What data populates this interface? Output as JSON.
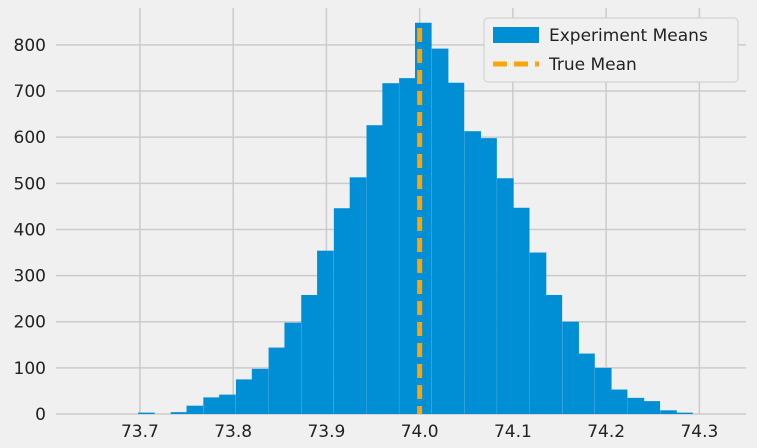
{
  "chart_data": {
    "type": "bar",
    "subtype": "histogram",
    "title": "",
    "xlabel": "",
    "ylabel": "",
    "xlim": [
      73.61,
      74.35
    ],
    "ylim": [
      0,
      880
    ],
    "xticks": [
      73.7,
      73.8,
      73.9,
      74.0,
      74.1,
      74.2,
      74.3
    ],
    "xtick_labels": [
      "73.7",
      "73.8",
      "73.9",
      "74.0",
      "74.1",
      "74.2",
      "74.3"
    ],
    "yticks": [
      0,
      100,
      200,
      300,
      400,
      500,
      600,
      700,
      800
    ],
    "ytick_labels": [
      "0",
      "100",
      "200",
      "300",
      "400",
      "500",
      "600",
      "700",
      "800"
    ],
    "grid": true,
    "legend_position": "top-right",
    "bin_width": 0.0175,
    "bins": [
      {
        "x0": 73.698,
        "count": 3
      },
      {
        "x0": 73.733,
        "count": 4
      },
      {
        "x0": 73.75,
        "count": 18
      },
      {
        "x0": 73.768,
        "count": 36
      },
      {
        "x0": 73.785,
        "count": 42
      },
      {
        "x0": 73.803,
        "count": 75
      },
      {
        "x0": 73.82,
        "count": 98
      },
      {
        "x0": 73.838,
        "count": 144
      },
      {
        "x0": 73.855,
        "count": 198
      },
      {
        "x0": 73.873,
        "count": 258
      },
      {
        "x0": 73.89,
        "count": 354
      },
      {
        "x0": 73.908,
        "count": 446
      },
      {
        "x0": 73.925,
        "count": 513
      },
      {
        "x0": 73.943,
        "count": 626
      },
      {
        "x0": 73.96,
        "count": 717
      },
      {
        "x0": 73.978,
        "count": 728
      },
      {
        "x0": 73.995,
        "count": 848
      },
      {
        "x0": 74.013,
        "count": 792
      },
      {
        "x0": 74.03,
        "count": 718
      },
      {
        "x0": 74.048,
        "count": 613
      },
      {
        "x0": 74.065,
        "count": 598
      },
      {
        "x0": 74.083,
        "count": 511
      },
      {
        "x0": 74.1,
        "count": 447
      },
      {
        "x0": 74.118,
        "count": 350
      },
      {
        "x0": 74.135,
        "count": 258
      },
      {
        "x0": 74.153,
        "count": 200
      },
      {
        "x0": 74.17,
        "count": 131
      },
      {
        "x0": 74.188,
        "count": 100
      },
      {
        "x0": 74.205,
        "count": 53
      },
      {
        "x0": 74.223,
        "count": 35
      },
      {
        "x0": 74.24,
        "count": 28
      },
      {
        "x0": 74.258,
        "count": 8
      },
      {
        "x0": 74.275,
        "count": 3
      }
    ],
    "series": [
      {
        "name": "Experiment Means",
        "kind": "histogram",
        "color": "#008fd5"
      },
      {
        "name": "True Mean",
        "kind": "vline",
        "x": 74.0,
        "color": "#fca40a"
      }
    ]
  }
}
